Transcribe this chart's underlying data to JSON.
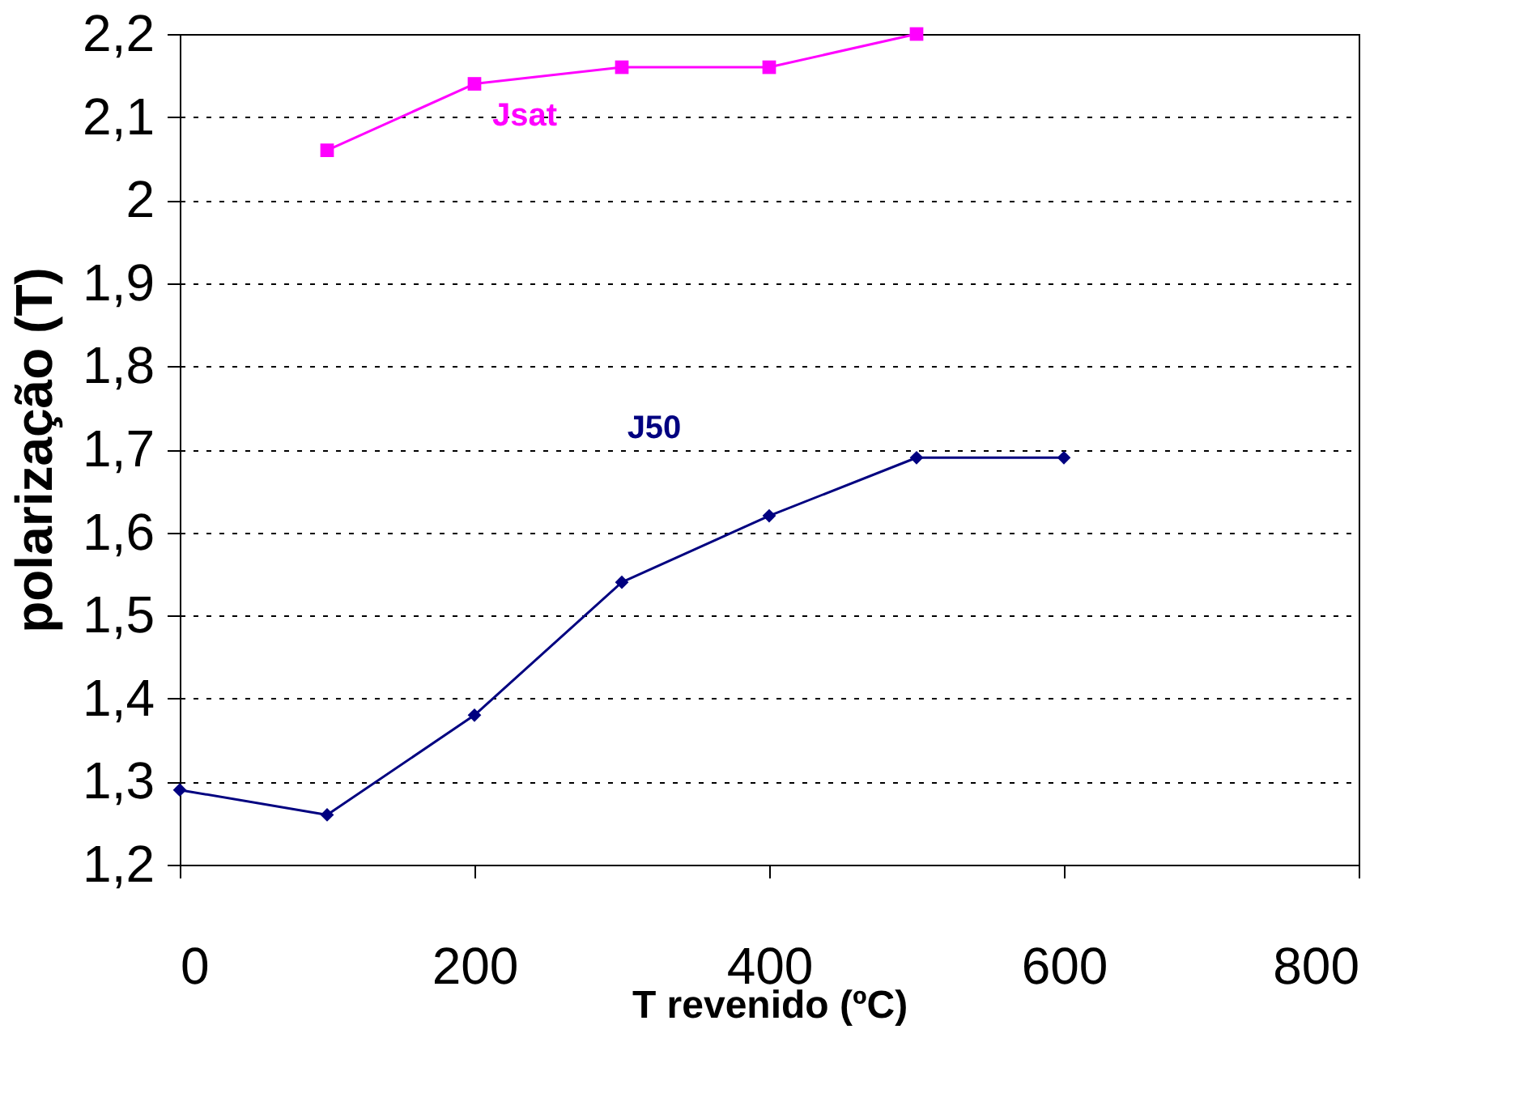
{
  "chart_data": {
    "type": "line",
    "xlabel": "T revenido (ºC)",
    "ylabel": "polarização (T)",
    "xlim": [
      0,
      800
    ],
    "xticks": [
      0,
      200,
      400,
      600,
      800
    ],
    "ylim": [
      1.2,
      2.2
    ],
    "yticks": [
      {
        "value": 1.2,
        "label": "1,2"
      },
      {
        "value": 1.3,
        "label": "1,3"
      },
      {
        "value": 1.4,
        "label": "1,4"
      },
      {
        "value": 1.5,
        "label": "1,5"
      },
      {
        "value": 1.6,
        "label": "1,6"
      },
      {
        "value": 1.7,
        "label": "1,7"
      },
      {
        "value": 1.8,
        "label": "1,8"
      },
      {
        "value": 1.9,
        "label": "1,9"
      },
      {
        "value": 2,
        "label": "2"
      },
      {
        "value": 2.1,
        "label": "2,1"
      },
      {
        "value": 2.2,
        "label": "2,2"
      }
    ],
    "grid": "y",
    "series": [
      {
        "name": "Jsat",
        "color": "#ff00ff",
        "marker": "square",
        "x": [
          100,
          200,
          300,
          400,
          500
        ],
        "values": [
          2.06,
          2.14,
          2.16,
          2.16,
          2.2
        ]
      },
      {
        "name": "J50",
        "color": "#000080",
        "marker": "diamond",
        "x": [
          0,
          100,
          200,
          300,
          400,
          500,
          600
        ],
        "values": [
          1.29,
          1.26,
          1.38,
          1.54,
          1.62,
          1.69,
          1.69
        ]
      }
    ]
  }
}
